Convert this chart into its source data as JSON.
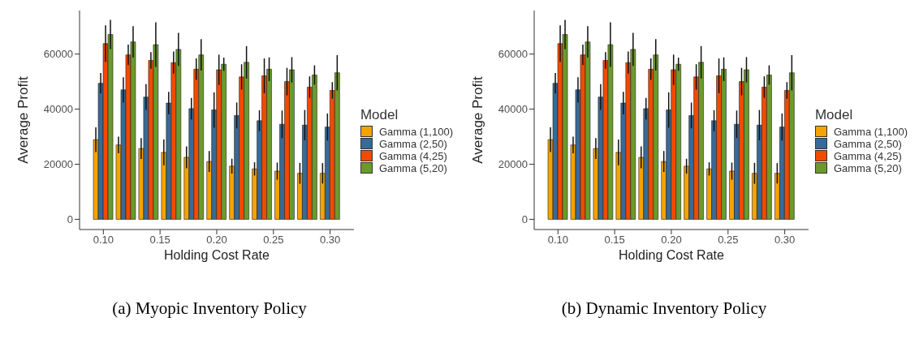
{
  "chart_data": [
    {
      "type": "bar",
      "annotations": [
        "(a) Myopic Inventory Policy"
      ],
      "xlabel": "Holding Cost Rate",
      "ylabel": "Average Profit",
      "legend_title": "Model",
      "legend": "right",
      "grid": false,
      "x": [
        0.1,
        0.12,
        0.14,
        0.16,
        0.18,
        0.2,
        0.22,
        0.24,
        0.26,
        0.28,
        0.3
      ],
      "xlim": [
        0.079,
        0.321
      ],
      "xticks": [
        {
          "value": 0.1,
          "label": "0.10"
        },
        {
          "value": 0.15,
          "label": "0.15"
        },
        {
          "value": 0.2,
          "label": "0.20"
        },
        {
          "value": 0.25,
          "label": "0.25"
        },
        {
          "value": 0.3,
          "label": "0.30"
        }
      ],
      "ylim": [
        -3700,
        75800
      ],
      "yticks": [
        0,
        20000,
        40000,
        60000
      ],
      "series": [
        {
          "name": "Gamma (1,100)",
          "color": "#f5a300",
          "values": [
            28900,
            27000,
            25700,
            24300,
            22500,
            21000,
            19300,
            18300,
            17500,
            16700,
            16700
          ],
          "errors": [
            4500,
            3000,
            3800,
            4700,
            4000,
            3800,
            2700,
            2400,
            3100,
            3800,
            3700
          ]
        },
        {
          "name": "Gamma (2,50)",
          "color": "#386a97",
          "values": [
            49400,
            47000,
            44400,
            42200,
            40200,
            39700,
            37700,
            35800,
            34500,
            34200,
            33500
          ],
          "errors": [
            3700,
            4600,
            4700,
            4100,
            3900,
            6400,
            4700,
            3800,
            5000,
            5500,
            4900
          ]
        },
        {
          "name": "Gamma (4,25)",
          "color": "#f24a00",
          "values": [
            63800,
            59700,
            57700,
            56900,
            54500,
            54300,
            51700,
            52100,
            50000,
            48000,
            46800
          ],
          "errors": [
            6600,
            3700,
            3000,
            4000,
            3900,
            5500,
            4600,
            6300,
            5000,
            3900,
            3000
          ]
        },
        {
          "name": "Gamma (5,20)",
          "color": "#6b9a2b",
          "values": [
            67100,
            64400,
            63400,
            61700,
            59700,
            56300,
            57000,
            54500,
            54300,
            52400,
            53200
          ],
          "errors": [
            5300,
            5700,
            8100,
            6000,
            5700,
            2400,
            5900,
            4300,
            4600,
            3500,
            6400
          ]
        }
      ]
    },
    {
      "type": "bar",
      "annotations": [
        "(b) Dynamic Inventory Policy"
      ],
      "xlabel": "Holding Cost Rate",
      "ylabel": "Average Profit",
      "legend_title": "Model",
      "legend": "right",
      "grid": false,
      "x": [
        0.1,
        0.12,
        0.14,
        0.16,
        0.18,
        0.2,
        0.22,
        0.24,
        0.26,
        0.28,
        0.3
      ],
      "xlim": [
        0.079,
        0.321
      ],
      "xticks": [
        {
          "value": 0.1,
          "label": "0.10"
        },
        {
          "value": 0.15,
          "label": "0.15"
        },
        {
          "value": 0.2,
          "label": "0.20"
        },
        {
          "value": 0.25,
          "label": "0.25"
        },
        {
          "value": 0.3,
          "label": "0.30"
        }
      ],
      "ylim": [
        -3700,
        75800
      ],
      "yticks": [
        0,
        20000,
        40000,
        60000
      ],
      "series": [
        {
          "name": "Gamma (1,100)",
          "color": "#f5a300",
          "values": [
            28900,
            27000,
            25700,
            24300,
            22500,
            21000,
            19300,
            18300,
            17500,
            16700,
            16700
          ],
          "errors": [
            4500,
            3000,
            3800,
            4700,
            4000,
            3800,
            2700,
            2400,
            3100,
            3800,
            3700
          ]
        },
        {
          "name": "Gamma (2,50)",
          "color": "#386a97",
          "values": [
            49400,
            47000,
            44400,
            42200,
            40200,
            39700,
            37700,
            35800,
            34500,
            34200,
            33500
          ],
          "errors": [
            3700,
            4600,
            4700,
            4100,
            3900,
            6400,
            4700,
            3800,
            5000,
            5500,
            4900
          ]
        },
        {
          "name": "Gamma (4,25)",
          "color": "#f24a00",
          "values": [
            63800,
            59700,
            57700,
            56900,
            54500,
            54300,
            51700,
            52100,
            50000,
            48000,
            46800
          ],
          "errors": [
            6600,
            3700,
            3000,
            4000,
            3900,
            5500,
            4600,
            6300,
            5000,
            3900,
            3000
          ]
        },
        {
          "name": "Gamma (5,20)",
          "color": "#6b9a2b",
          "values": [
            67100,
            64400,
            63400,
            61700,
            59700,
            56300,
            57000,
            54500,
            54300,
            52400,
            53200
          ],
          "errors": [
            5300,
            5700,
            8100,
            6000,
            5700,
            2400,
            5900,
            4300,
            4600,
            3500,
            6400
          ]
        }
      ]
    }
  ]
}
